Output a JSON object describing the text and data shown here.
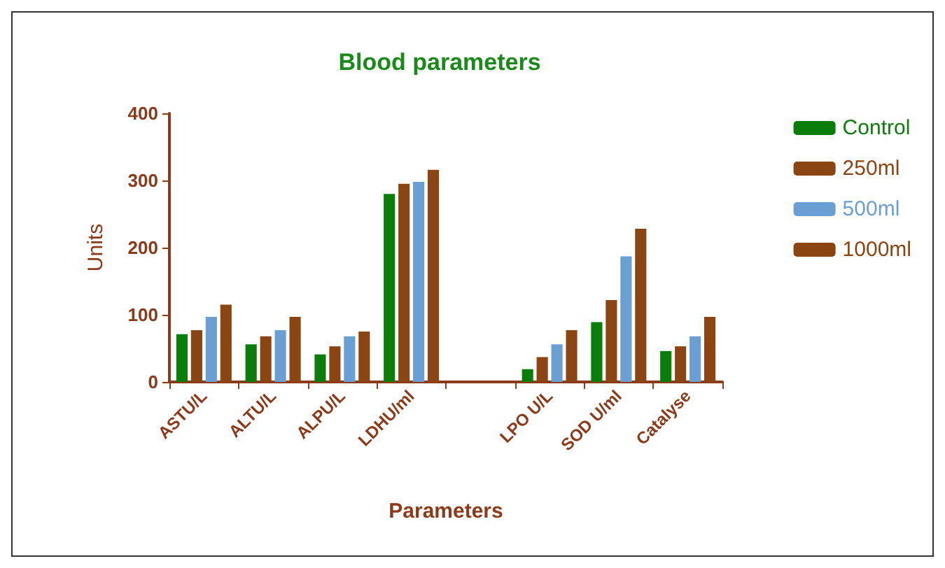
{
  "chart_data": {
    "type": "bar",
    "title": "Blood parameters",
    "xlabel": "Parameters",
    "ylabel": "Units",
    "categories": [
      "ASTU/L",
      "ALTU/L",
      "ALPU/L",
      "LDHU/ml",
      null,
      "LPO U/L",
      "SOD U/ml",
      "Catalyse"
    ],
    "series": [
      {
        "name": "Control",
        "color": "#0a7d0a",
        "values": [
          71,
          56,
          41,
          280,
          null,
          19,
          89,
          46
        ]
      },
      {
        "name": "250ml",
        "color": "#8b4513",
        "values": [
          77,
          68,
          53,
          295,
          null,
          37,
          122,
          53
        ]
      },
      {
        "name": "500ml",
        "color": "#6a9fd4",
        "values": [
          97,
          77,
          68,
          298,
          null,
          56,
          187,
          68
        ]
      },
      {
        "name": "1000ml",
        "color": "#8b4513",
        "values": [
          115,
          97,
          75,
          316,
          null,
          77,
          228,
          97
        ]
      }
    ],
    "ylim": [
      0,
      400
    ],
    "yticks": [
      0,
      100,
      200,
      300,
      400
    ],
    "grid": false,
    "legend": "right"
  }
}
